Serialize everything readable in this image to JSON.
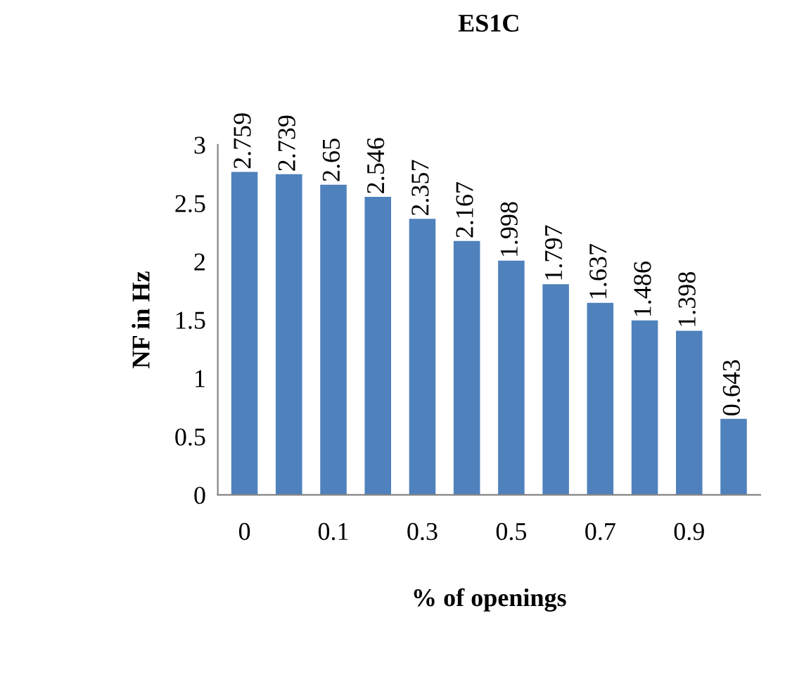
{
  "chart_data": {
    "type": "bar",
    "title": "ES1C",
    "xlabel": "% of openings",
    "ylabel": "NF in Hz",
    "categories": [
      "0",
      null,
      "0.1",
      null,
      "0.3",
      null,
      "0.5",
      null,
      "0.7",
      null,
      "0.9",
      null
    ],
    "values": [
      2.759,
      2.739,
      2.65,
      2.546,
      2.357,
      2.167,
      1.998,
      1.797,
      1.637,
      1.486,
      1.398,
      0.643
    ],
    "color": "#4f81bd",
    "ylim": [
      0,
      3
    ],
    "yticks": [
      0,
      0.5,
      1,
      1.5,
      2,
      2.5,
      3
    ],
    "grid": false,
    "data_labels": true
  }
}
